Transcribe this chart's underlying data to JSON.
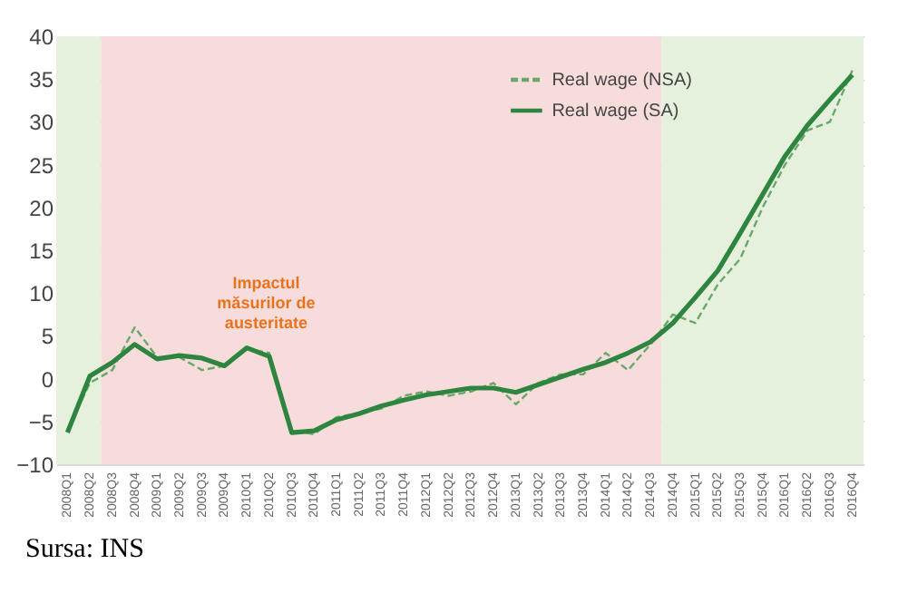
{
  "chart_data": {
    "type": "line",
    "categories": [
      "2008Q1",
      "2008Q2",
      "2008Q3",
      "2008Q4",
      "2009Q1",
      "2009Q2",
      "2009Q3",
      "2009Q4",
      "2010Q1",
      "2010Q2",
      "2010Q3",
      "2010Q4",
      "2011Q1",
      "2011Q2",
      "2011Q3",
      "2011Q4",
      "2012Q1",
      "2012Q2",
      "2012Q3",
      "2012Q4",
      "2013Q1",
      "2013Q2",
      "2013Q3",
      "2013Q4",
      "2014Q1",
      "2014Q2",
      "2014Q3",
      "2014Q4",
      "2015Q1",
      "2015Q2",
      "2015Q3",
      "2015Q4",
      "2016Q1",
      "2016Q2",
      "2016Q3",
      "2016Q4"
    ],
    "series": [
      {
        "name": "Real wage (NSA)",
        "color": "#6aa86a",
        "line_style": "dashed",
        "values": [
          -6,
          -0.5,
          1,
          6,
          2.5,
          2.5,
          1,
          1.5,
          3.5,
          3,
          -6,
          -6.5,
          -4.5,
          -4,
          -3.5,
          -2,
          -1.5,
          -2,
          -1.5,
          -0.5,
          -3,
          -0.5,
          0.5,
          0.5,
          3,
          1,
          4,
          7.5,
          6.5,
          11,
          14,
          20,
          25,
          29,
          30,
          36
        ]
      },
      {
        "name": "Real wage (SA)",
        "color": "#2e8540",
        "line_style": "solid",
        "values": [
          -6.3,
          0.3,
          1.9,
          4,
          2.3,
          2.7,
          2.4,
          1.5,
          3.6,
          2.6,
          -6.3,
          -6.1,
          -4.8,
          -4.1,
          -3.2,
          -2.5,
          -1.9,
          -1.5,
          -1.1,
          -1.1,
          -1.6,
          -0.7,
          0.2,
          1.1,
          1.9,
          3,
          4.3,
          6.5,
          9.5,
          12.6,
          17,
          21.5,
          26,
          29.6,
          32.6,
          35.5
        ]
      }
    ],
    "ylim": [
      -10,
      40
    ],
    "yticks": [
      -10,
      -5,
      0,
      5,
      10,
      15,
      20,
      25,
      30,
      35,
      40
    ],
    "grid": "y",
    "legend": "top right",
    "bands": [
      {
        "axis": "x",
        "from": "2008Q1",
        "to": "2008Q2",
        "color": "#e5f1dc"
      },
      {
        "axis": "x",
        "from": "2008Q3",
        "to": "2014Q3",
        "color": "#f7dcdc"
      },
      {
        "axis": "x",
        "from": "2014Q4",
        "to": "2016Q4",
        "color": "#e5f1dc"
      }
    ],
    "annotations": [
      "Impactul măsurilor de austeritate",
      "Sursa: INS"
    ]
  }
}
